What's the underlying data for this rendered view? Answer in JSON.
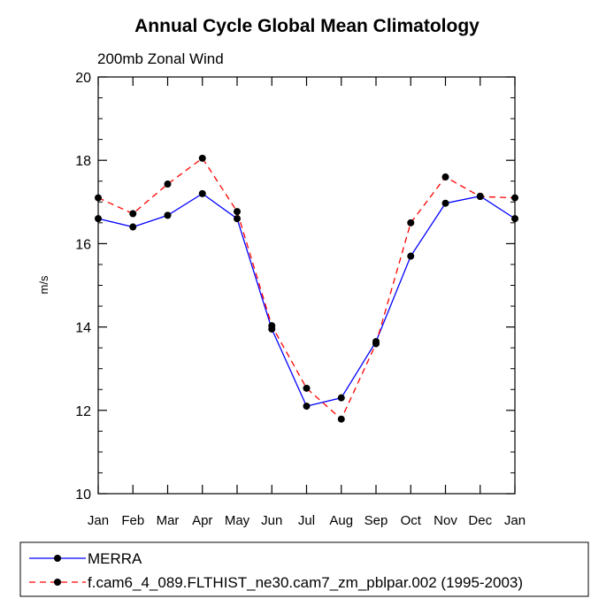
{
  "chart_data": {
    "type": "line",
    "title": "Annual Cycle Global Mean Climatology",
    "subtitle": "200mb Zonal Wind",
    "xlabel": "",
    "ylabel": "m/s",
    "categories": [
      "Jan",
      "Feb",
      "Mar",
      "Apr",
      "May",
      "Jun",
      "Jul",
      "Aug",
      "Sep",
      "Oct",
      "Nov",
      "Dec",
      "Jan"
    ],
    "ylim": [
      10,
      20
    ],
    "yticks": [
      10,
      12,
      14,
      16,
      18,
      20
    ],
    "legend_position": "bottom",
    "series": [
      {
        "name": "MERRA",
        "color": "#0000ff",
        "dash": "solid",
        "values": [
          16.6,
          16.4,
          16.68,
          17.2,
          16.6,
          13.95,
          12.1,
          12.3,
          13.65,
          15.7,
          16.97,
          17.14,
          16.6
        ]
      },
      {
        "name": "f.cam6_4_089.FLTHIST_ne30.cam7_zm_pblpar.002 (1995-2003)",
        "color": "#ff0000",
        "dash": "dashed",
        "values": [
          17.1,
          16.72,
          17.43,
          18.05,
          16.77,
          14.03,
          12.53,
          11.79,
          13.6,
          16.5,
          17.6,
          17.13,
          17.1
        ]
      }
    ]
  }
}
